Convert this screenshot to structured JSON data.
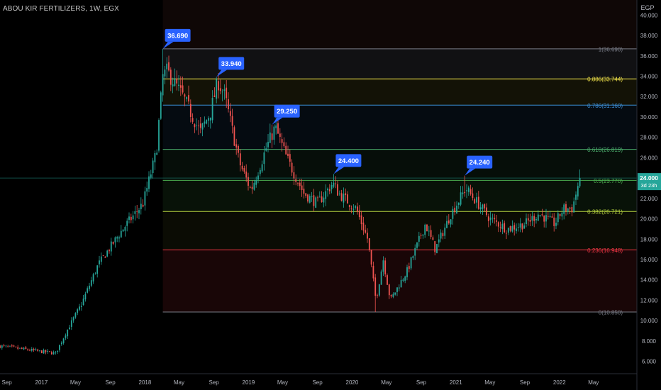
{
  "header": {
    "symbol_label": "ABOU KIR FERTILIZERS, 1W, EGX",
    "currency": "EGP"
  },
  "colors": {
    "background": "#000000",
    "up": "#26a69a",
    "down": "#ef5350",
    "callout": "#2962ff",
    "axis_text": "#b2b5be",
    "price_tag": "#26a69a"
  },
  "chart_data": {
    "type": "candlestick",
    "title": "",
    "xlabel": "",
    "ylabel": "",
    "ylim": [
      6,
      40
    ],
    "y_ticks": [
      "6.000",
      "8.000",
      "10.000",
      "12.000",
      "14.000",
      "16.000",
      "18.000",
      "20.000",
      "22.000",
      "24.000",
      "26.000",
      "28.000",
      "30.000",
      "32.000",
      "34.000",
      "36.000",
      "38.000",
      "40.000"
    ],
    "x_ticks": [
      "Sep",
      "2017",
      "May",
      "Sep",
      "2018",
      "May",
      "Sep",
      "2019",
      "May",
      "Sep",
      "2020",
      "May",
      "Sep",
      "2021",
      "May",
      "Sep",
      "2022",
      "May"
    ],
    "x_range": [
      "2016-08-08",
      "2022-06-06"
    ],
    "key_prices": [
      {
        "date": "2016-08-08",
        "price": 7.5
      },
      {
        "date": "2016-12-20",
        "price": 7.0
      },
      {
        "date": "2017-02-20",
        "price": 6.8
      },
      {
        "date": "2017-04-10",
        "price": 9.5
      },
      {
        "date": "2017-05-20",
        "price": 11.5
      },
      {
        "date": "2017-07-20",
        "price": 15.5
      },
      {
        "date": "2017-10-15",
        "price": 19.0
      },
      {
        "date": "2017-12-25",
        "price": 21.5
      },
      {
        "date": "2018-02-10",
        "price": 26.5
      },
      {
        "date": "2018-03-05",
        "price": 34.0
      },
      {
        "date": "2018-03-20",
        "price": 34.5
      },
      {
        "date": "2018-05-15",
        "price": 32.0
      },
      {
        "date": "2018-07-15",
        "price": 28.5
      },
      {
        "date": "2018-08-20",
        "price": 30.5
      },
      {
        "date": "2018-09-15",
        "price": 33.5
      },
      {
        "date": "2018-10-10",
        "price": 32.0
      },
      {
        "date": "2018-11-30",
        "price": 25.5
      },
      {
        "date": "2019-01-10",
        "price": 22.8
      },
      {
        "date": "2019-03-05",
        "price": 27.0
      },
      {
        "date": "2019-04-05",
        "price": 29.0
      },
      {
        "date": "2019-05-15",
        "price": 26.0
      },
      {
        "date": "2019-07-15",
        "price": 22.5
      },
      {
        "date": "2019-09-01",
        "price": 21.5
      },
      {
        "date": "2019-10-25",
        "price": 23.5
      },
      {
        "date": "2019-11-15",
        "price": 22.5
      },
      {
        "date": "2020-01-15",
        "price": 21.0
      },
      {
        "date": "2020-02-25",
        "price": 18.0
      },
      {
        "date": "2020-03-25",
        "price": 12.0
      },
      {
        "date": "2020-04-20",
        "price": 16.0
      },
      {
        "date": "2020-05-15",
        "price": 12.0
      },
      {
        "date": "2020-07-15",
        "price": 15.0
      },
      {
        "date": "2020-09-15",
        "price": 19.5
      },
      {
        "date": "2020-10-20",
        "price": 17.0
      },
      {
        "date": "2020-12-15",
        "price": 20.5
      },
      {
        "date": "2021-02-05",
        "price": 23.0
      },
      {
        "date": "2021-03-20",
        "price": 21.5
      },
      {
        "date": "2021-05-01",
        "price": 20.0
      },
      {
        "date": "2021-07-01",
        "price": 19.0
      },
      {
        "date": "2021-09-01",
        "price": 19.5
      },
      {
        "date": "2021-10-20",
        "price": 20.5
      },
      {
        "date": "2021-12-15",
        "price": 19.5
      },
      {
        "date": "2022-01-15",
        "price": 21.0
      },
      {
        "date": "2022-02-15",
        "price": 21.0
      },
      {
        "date": "2022-03-14",
        "price": 24.0
      }
    ],
    "peak_labels": [
      {
        "date": "2018-03-05",
        "price": 36.69,
        "label": "36.690"
      },
      {
        "date": "2018-09-10",
        "price": 33.94,
        "label": "33.940"
      },
      {
        "date": "2019-03-25",
        "price": 29.25,
        "label": "29.250"
      },
      {
        "date": "2019-10-28",
        "price": 24.4,
        "label": "24.400"
      },
      {
        "date": "2021-02-01",
        "price": 24.24,
        "label": "24.240"
      }
    ],
    "fib_start_date": "2018-03-05",
    "fib_levels": [
      {
        "price": 36.69,
        "label": "1(36.690)",
        "line": "#787b86",
        "band": "rgba(120,123,134,0.14)"
      },
      {
        "price": 33.744,
        "label": "0.886(33.744)",
        "line": "#f2e44b",
        "band": "rgba(242,228,75,0.08)"
      },
      {
        "price": 31.16,
        "label": "0.786(31.160)",
        "line": "#3d8fd6",
        "band": "rgba(61,143,214,0.08)"
      },
      {
        "price": 26.819,
        "label": "0.618(26.819)",
        "line": "#4caf6e",
        "band": "rgba(76,175,110,0.08)"
      },
      {
        "price": 23.77,
        "label": "0.5(23.770)",
        "line": "#4caf50",
        "band": "rgba(76,175,80,0.10)"
      },
      {
        "price": 20.721,
        "label": "0.382(20.721)",
        "line": "#b5d13e",
        "band": "rgba(181,209,62,0.06)"
      },
      {
        "price": 16.948,
        "label": "0.236(16.948)",
        "line": "#f23645",
        "band": "rgba(242,54,69,0.10)"
      },
      {
        "price": 10.85,
        "label": "0(10.850)",
        "line": "#787b86",
        "band": ""
      }
    ],
    "last_price": {
      "value": 24.0,
      "label": "24.000",
      "countdown": "3d 23h"
    }
  }
}
